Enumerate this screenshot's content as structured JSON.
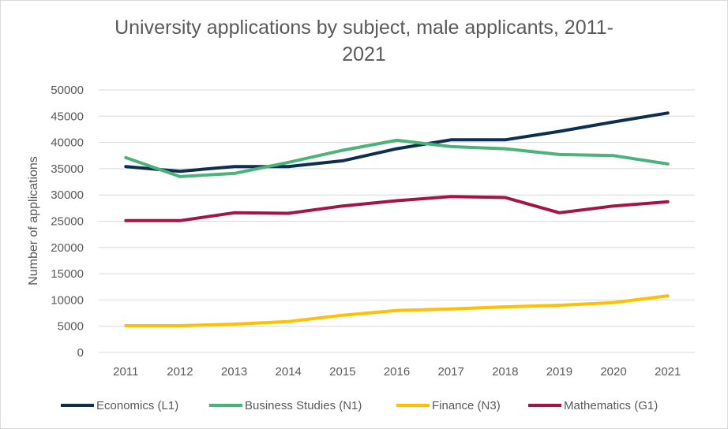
{
  "chart_data": {
    "type": "line",
    "title_lines": [
      "University applications by subject, male applicants, 2011-",
      "2021"
    ],
    "xlabel": "",
    "ylabel": "Number of applications",
    "ylim": [
      0,
      50000
    ],
    "yticks": [
      "0",
      "5000",
      "10000",
      "15000",
      "20000",
      "25000",
      "30000",
      "35000",
      "40000",
      "45000",
      "50000"
    ],
    "grid": "horizontal",
    "legend_position": "bottom",
    "categories": [
      "2011",
      "2012",
      "2013",
      "2014",
      "2015",
      "2016",
      "2017",
      "2018",
      "2019",
      "2020",
      "2021"
    ],
    "series": [
      {
        "name": "Economics (L1)",
        "color": "#0d2f4f",
        "values": [
          35400,
          34500,
          35400,
          35400,
          36500,
          38800,
          40500,
          40500,
          42100,
          43900,
          45600
        ]
      },
      {
        "name": "Business Studies (N1)",
        "color": "#4bb27a",
        "values": [
          37100,
          33500,
          34100,
          36200,
          38500,
          40400,
          39200,
          38800,
          37700,
          37500,
          35900
        ]
      },
      {
        "name": "Finance (N3)",
        "color": "#ffc000",
        "values": [
          5100,
          5100,
          5400,
          5900,
          7100,
          8000,
          8300,
          8700,
          9000,
          9500,
          10800
        ]
      },
      {
        "name": "Mathematics (G1)",
        "color": "#a31447",
        "values": [
          25100,
          25100,
          26600,
          26500,
          27900,
          28900,
          29700,
          29500,
          26600,
          27900,
          28700
        ]
      }
    ]
  }
}
